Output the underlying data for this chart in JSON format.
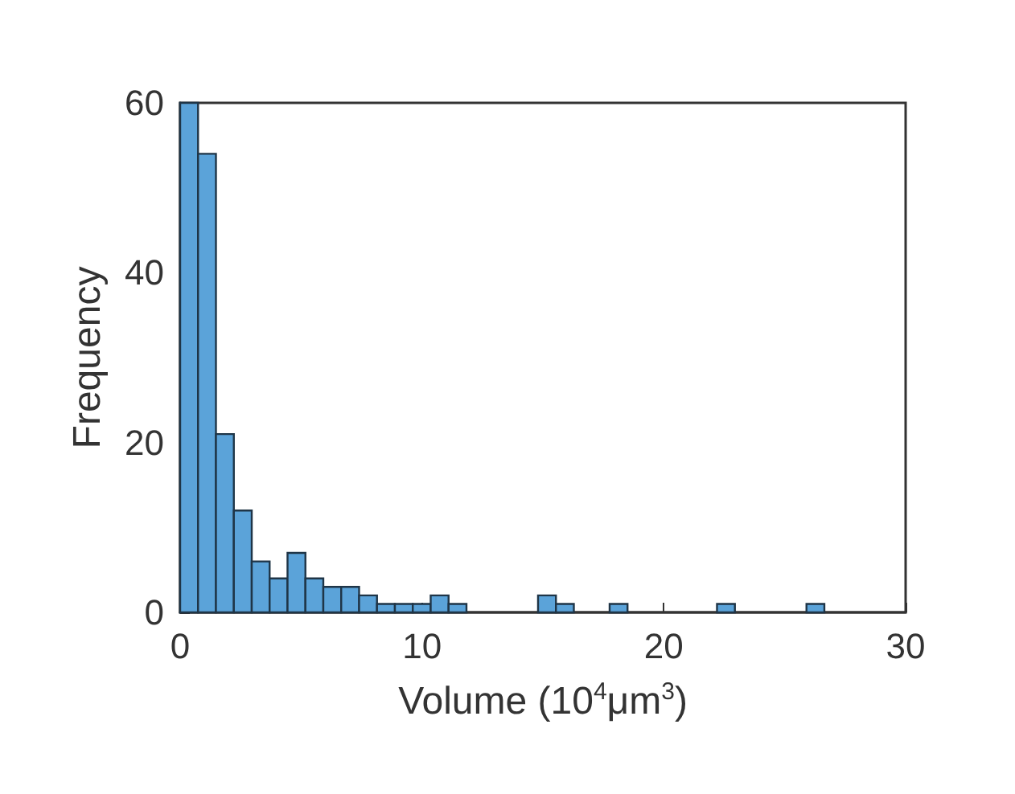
{
  "chart_data": {
    "type": "histogram",
    "xlabel": "Volume (10$^{4}$μm$^{3}$)",
    "ylabel": "Frequency",
    "bins": [
      0,
      0.74,
      1.48,
      2.22,
      2.96,
      3.7,
      4.44,
      5.18,
      5.92,
      6.66,
      7.4,
      8.14,
      8.88,
      9.62,
      10.36,
      11.1,
      11.84,
      12.58,
      13.32,
      14.06,
      14.8,
      15.54,
      16.28,
      17.02,
      17.76,
      18.5,
      19.24,
      19.98,
      20.72,
      21.46,
      22.2,
      22.94,
      23.68,
      24.42,
      25.16,
      25.9,
      26.64
    ],
    "values": [
      60,
      54,
      21,
      12,
      6,
      4,
      7,
      4,
      3,
      3,
      2,
      1,
      1,
      1,
      2,
      1,
      0,
      0,
      0,
      0,
      2,
      1,
      0,
      0,
      1,
      0,
      0,
      0,
      0,
      0,
      1,
      0,
      0,
      0,
      0,
      1
    ],
    "color": "#5ba3d9",
    "xlim": [
      0,
      30
    ],
    "xticks": [
      0,
      10,
      20,
      30
    ],
    "ylim": [
      0,
      60
    ],
    "yticks": [
      0,
      20,
      40,
      60
    ],
    "grid": false
  }
}
